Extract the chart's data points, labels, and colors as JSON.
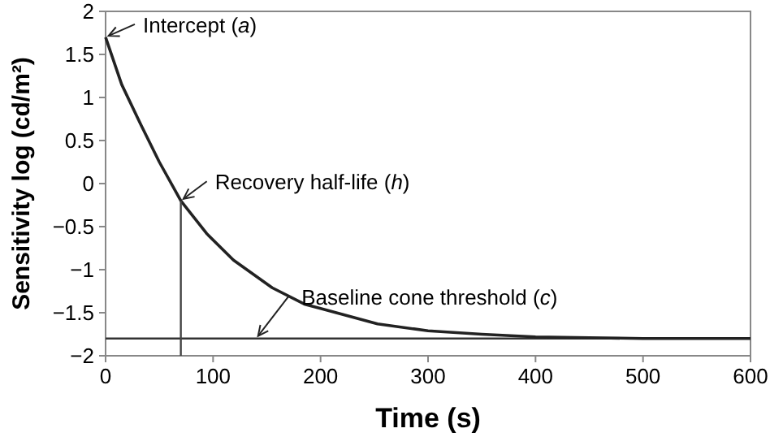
{
  "chart_data": {
    "type": "line",
    "xlabel": "Time (s)",
    "ylabel": "Sensitivity log (cd/m²)",
    "xlim": [
      0,
      600
    ],
    "xticks": [
      0,
      100,
      200,
      300,
      400,
      500,
      600
    ],
    "ylim": [
      -2,
      2
    ],
    "yticks": [
      -2,
      -1.5,
      -1,
      -0.5,
      0,
      0.5,
      1,
      1.5,
      2
    ],
    "grid": false,
    "marker": "none",
    "line_style": "solid",
    "series": [
      {
        "color": "#222222",
        "x": [
          0,
          15,
          33,
          50,
          70,
          94,
          119,
          155,
          185,
          200,
          253,
          300,
          350,
          400,
          450,
          500,
          600
        ],
        "values": [
          1.7,
          1.15,
          0.68,
          0.25,
          -0.2,
          -0.58,
          -0.89,
          -1.21,
          -1.4,
          -1.45,
          -1.63,
          -1.71,
          -1.75,
          -1.78,
          -1.79,
          -1.8,
          -1.8
        ]
      },
      {
        "color": "#444444",
        "x": [
          70,
          70
        ],
        "values": [
          -2,
          -0.2
        ]
      }
    ],
    "ref_lines": [
      {
        "axis": "y",
        "value": -1.8,
        "color": "#333333"
      }
    ],
    "annotations": [
      {
        "text": "Intercept (a)",
        "x": 0,
        "y": 1.7
      },
      {
        "text": "Recovery half-life (h)",
        "x": 70,
        "y": -0.2
      },
      {
        "text": "Baseline cone threshold (c)",
        "x": 140,
        "y": -1.8
      }
    ]
  }
}
